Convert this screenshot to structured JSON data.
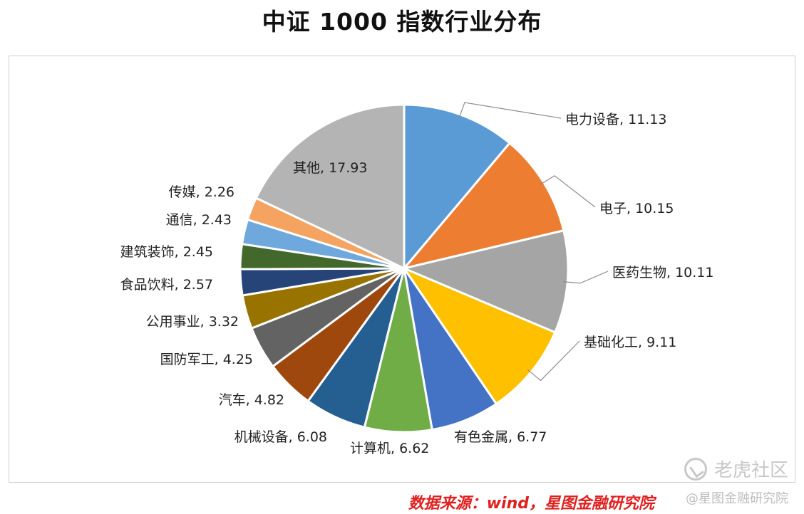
{
  "page": {
    "title": "中证 1000 指数行业分布",
    "source": "数据来源：wind，星图金融研究院",
    "watermark_text": "老虎社区",
    "handle": "@星图金融研究院"
  },
  "chart_data": {
    "type": "pie",
    "title": "中证 1000 指数行业分布",
    "slices": [
      {
        "label": "电力设备",
        "value": 11.13,
        "color": "#5b9bd5"
      },
      {
        "label": "电子",
        "value": 10.15,
        "color": "#ed7d31"
      },
      {
        "label": "医药生物",
        "value": 10.11,
        "color": "#a5a5a5"
      },
      {
        "label": "基础化工",
        "value": 9.11,
        "color": "#ffc000"
      },
      {
        "label": "有色金属",
        "value": 6.77,
        "color": "#4472c4"
      },
      {
        "label": "计算机",
        "value": 6.62,
        "color": "#70ad47"
      },
      {
        "label": "机械设备",
        "value": 6.08,
        "color": "#255e91"
      },
      {
        "label": "汽车",
        "value": 4.82,
        "color": "#9e480e"
      },
      {
        "label": "国防军工",
        "value": 4.25,
        "color": "#636363"
      },
      {
        "label": "公用事业",
        "value": 3.32,
        "color": "#997300"
      },
      {
        "label": "食品饮料",
        "value": 2.57,
        "color": "#264478"
      },
      {
        "label": "建筑装饰",
        "value": 2.45,
        "color": "#43682b"
      },
      {
        "label": "通信",
        "value": 2.43,
        "color": "#6fa8dc"
      },
      {
        "label": "传媒",
        "value": 2.26,
        "color": "#f4a460"
      },
      {
        "label": "其他",
        "value": 17.93,
        "color": "#b4b4b4"
      }
    ],
    "label_format": "{label}, {value}"
  }
}
